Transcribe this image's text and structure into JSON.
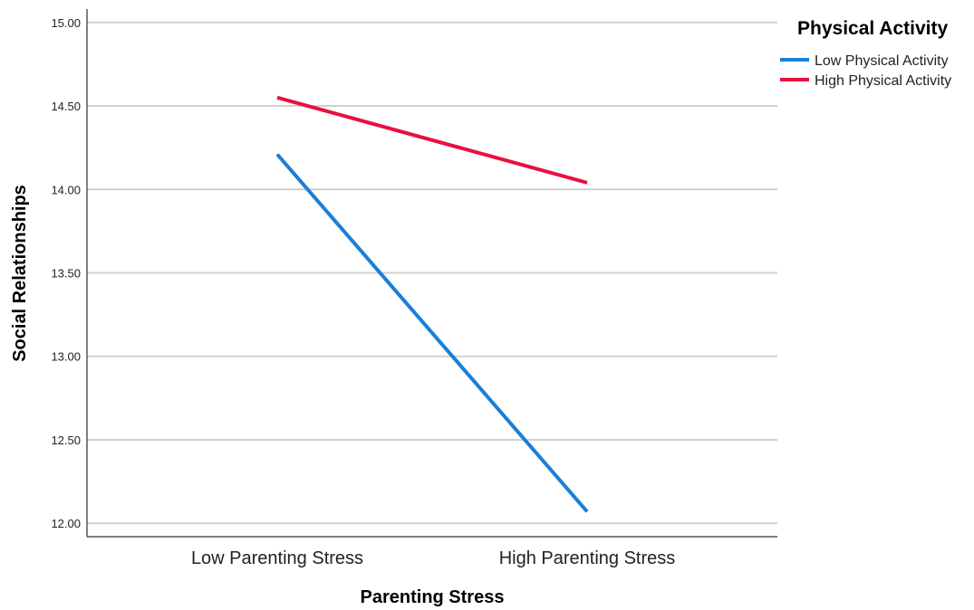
{
  "chart_data": {
    "type": "line",
    "categories": [
      "Low Parenting Stress",
      "High Parenting Stress"
    ],
    "series": [
      {
        "name": "Low Physical Activity",
        "values": [
          14.21,
          12.07
        ],
        "color": "#1a7fd9"
      },
      {
        "name": "High Physical Activity",
        "values": [
          14.55,
          14.04
        ],
        "color": "#e8103e"
      }
    ],
    "title": "",
    "xlabel": "Parenting Stress",
    "ylabel": "Social Relationships",
    "ylim": [
      11.92,
      15.08
    ],
    "yticks": [
      "12.00",
      "12.50",
      "13.00",
      "13.50",
      "14.00",
      "14.50",
      "15.00"
    ],
    "grid": true,
    "legend": {
      "title": "Physical Activity",
      "placement": "top-right"
    }
  }
}
